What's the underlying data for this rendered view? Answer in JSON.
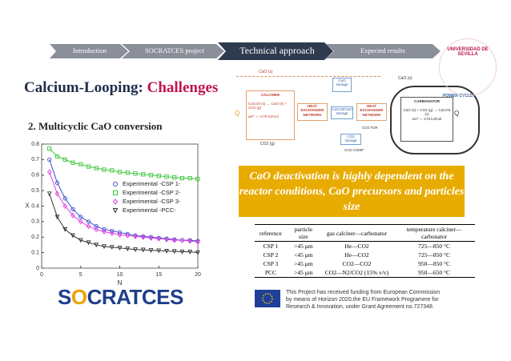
{
  "nav": {
    "items": [
      "Introduction",
      "SOCRATCES project",
      "Technical approach",
      "Expected results"
    ]
  },
  "header": {
    "title_part1": "Calcium-Looping:",
    "title_part2": "Challenges",
    "subtitle": "2. Multicyclic CaO conversion"
  },
  "chart_data": {
    "type": "scatter",
    "xlabel": "N",
    "ylabel": "X",
    "x": [
      1,
      2,
      3,
      4,
      5,
      6,
      7,
      8,
      9,
      10,
      11,
      12,
      13,
      14,
      15,
      16,
      17,
      18,
      19,
      20
    ],
    "xlim": [
      0,
      20
    ],
    "xticks": [
      0,
      5,
      10,
      15,
      20
    ],
    "ylim": [
      0,
      0.8
    ],
    "yticks": [
      0,
      0.1,
      0.2,
      0.3,
      0.4,
      0.5,
      0.6,
      0.7,
      0.8
    ],
    "series": [
      {
        "name": "Experimental -CSP 1-",
        "color": "#3a4fd0",
        "marker": "circle",
        "values": [
          0.7,
          0.55,
          0.45,
          0.38,
          0.33,
          0.3,
          0.27,
          0.25,
          0.24,
          0.23,
          0.22,
          0.21,
          0.205,
          0.2,
          0.195,
          0.19,
          0.185,
          0.18,
          0.18,
          0.175
        ]
      },
      {
        "name": "Experimental -CSP 2-",
        "color": "#3ec83e",
        "marker": "square",
        "values": [
          0.77,
          0.72,
          0.7,
          0.68,
          0.67,
          0.655,
          0.645,
          0.635,
          0.63,
          0.62,
          0.615,
          0.61,
          0.605,
          0.6,
          0.595,
          0.59,
          0.585,
          0.58,
          0.58,
          0.575
        ]
      },
      {
        "name": "Experimental -CSP 3-",
        "color": "#e040e0",
        "marker": "diamond",
        "values": [
          0.62,
          0.48,
          0.4,
          0.34,
          0.3,
          0.27,
          0.25,
          0.235,
          0.225,
          0.215,
          0.21,
          0.205,
          0.2,
          0.195,
          0.19,
          0.185,
          0.18,
          0.18,
          0.175,
          0.17
        ]
      },
      {
        "name": "Experimental -PCC-",
        "color": "#333333",
        "marker": "triangle",
        "values": [
          0.48,
          0.33,
          0.25,
          0.21,
          0.18,
          0.165,
          0.15,
          0.14,
          0.135,
          0.13,
          0.125,
          0.12,
          0.118,
          0.115,
          0.113,
          0.11,
          0.108,
          0.106,
          0.105,
          0.1
        ]
      }
    ]
  },
  "diagram": {
    "cao_top": "CaO (s)",
    "calciner": "CALCINER",
    "calc_reaction": "CaCO3 (s) → CaO (s) + CO2 (g)",
    "calc_dh": "ΔH° = +178 kJ/mol",
    "hen1": "HEAT EXCHANGER NETWORK",
    "cao_storage": "CaO storage",
    "caco3_storage": "CaCO3/CaO storage",
    "hen2": "HEAT EXCHANGER NETWORK",
    "carbonator": "CARBONATOR",
    "carb_reaction": "CaO (s) + CO2 (g) → CaCO3 (s)",
    "carb_dh": "ΔH° = -178 kJ/mol",
    "power": "POWER CYCLE",
    "co2": "CO2 (g)",
    "co2_storage": "CO2 storage",
    "co2_tur": "CO2 TUR",
    "co2_comp": "CO2 COMP",
    "q1": "Q",
    "q2": "Q",
    "cao_right": "CaO (s)"
  },
  "university": "UNIVERSIDAD DE SEVILLA",
  "callout": "CaO deactivation is highly dependent on the reactor conditions, CaO precursors and particles size",
  "table": {
    "header": [
      "reference",
      "particle size",
      "gas calciner—carbonator",
      "temperature calciner—carbonator"
    ],
    "rows": [
      [
        "CSP 1",
        ">45 μm",
        "He—CO2",
        "725—850 °C"
      ],
      [
        "CSP 2",
        "<45 μm",
        "He—CO2",
        "725—850 °C"
      ],
      [
        "CSP 3",
        ">45 μm",
        "CO2—CO2",
        "950—850 °C"
      ],
      [
        "PCC",
        ">45 μm",
        "CO2—N2/CO2 (15% v/v)",
        "950—650 °C"
      ]
    ]
  },
  "logo": {
    "s": "S",
    "o": "O",
    "rest": "CRATCES"
  },
  "funding": [
    "This Project has received funding from European Commission",
    "by means of Horizon 2020,the EU Framework Programme for",
    "Research & Innovation, under Grant Agreement no.727348."
  ]
}
